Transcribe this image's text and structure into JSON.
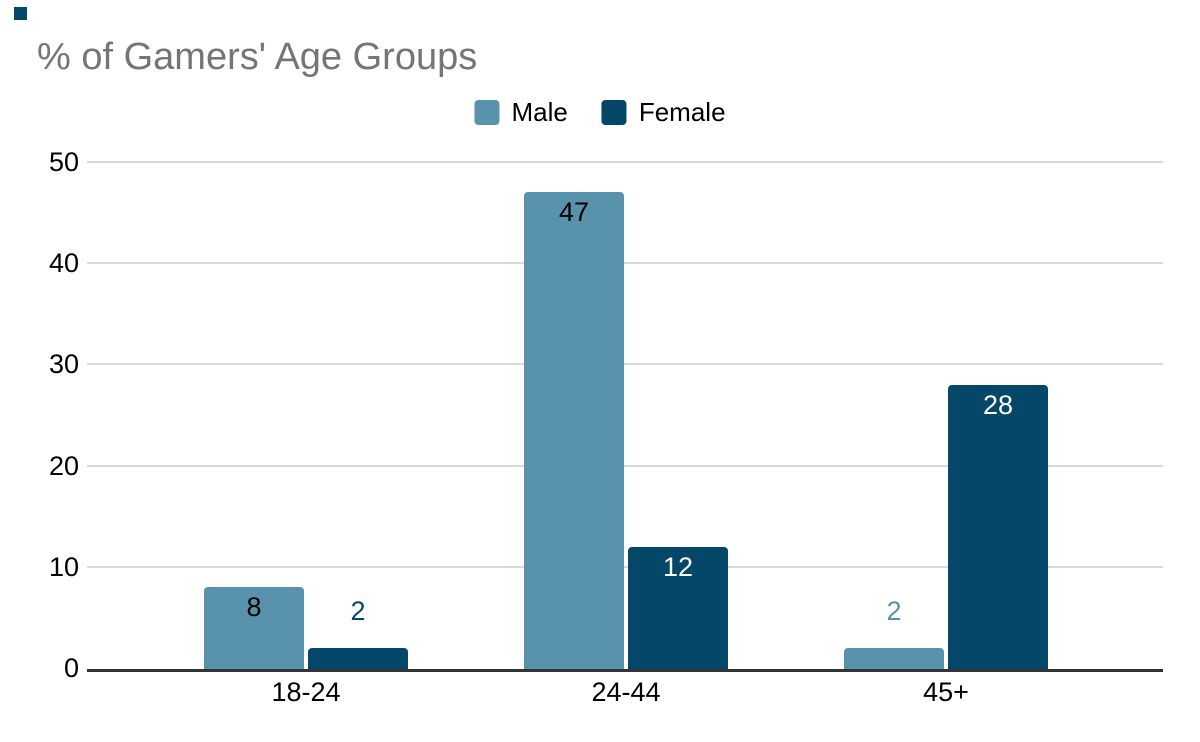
{
  "page": {
    "background": "#ffffff"
  },
  "decorations": {
    "corner_square_color": "#044768"
  },
  "chart_data": {
    "type": "bar",
    "title": "% of Gamers' Age Groups",
    "title_color": "#757575",
    "xlabel": "",
    "ylabel": "",
    "categories": [
      "18-24",
      "24-44",
      "45+"
    ],
    "series": [
      {
        "name": "Male",
        "color": "#5892ad",
        "values": [
          8,
          47,
          2
        ],
        "inside_label_color": "#000000"
      },
      {
        "name": "Female",
        "color": "#044768",
        "values": [
          2,
          12,
          28
        ],
        "inside_label_color": "#ffffff"
      }
    ],
    "data_labels": true,
    "ylim": [
      0,
      50
    ],
    "yticks": [
      "0",
      "10",
      "20",
      "30",
      "40",
      "50"
    ],
    "grid": "horizontal",
    "gridline_color": "#d9d9d9",
    "axis_line_color": "#333333",
    "tick_label_color": "#000000",
    "legend_position": "top-center"
  }
}
